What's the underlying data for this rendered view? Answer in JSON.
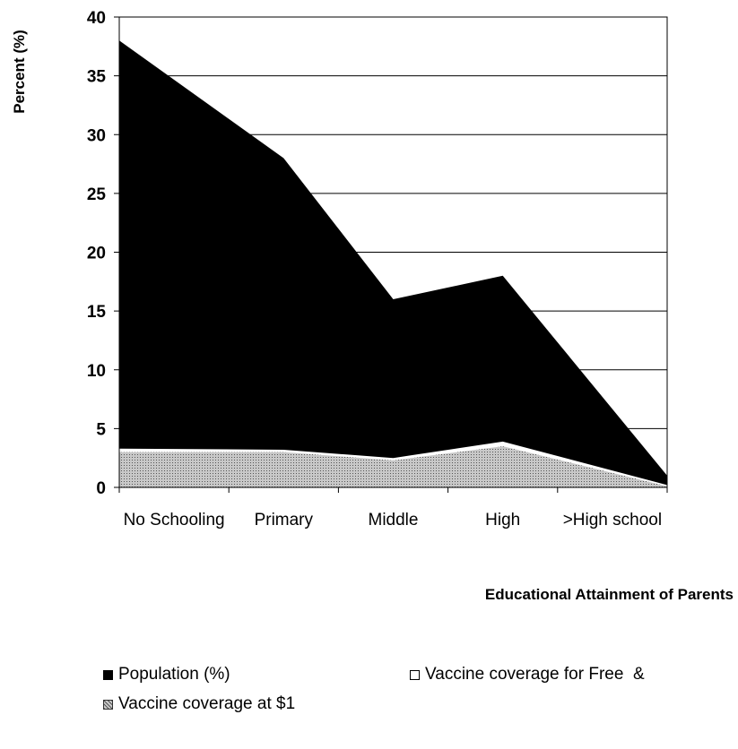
{
  "chart_data": {
    "type": "area",
    "stacked": false,
    "categories": [
      "No Schooling",
      "Primary",
      "Middle",
      "High",
      ">High school"
    ],
    "series": [
      {
        "name": "Population (%)",
        "values": [
          38,
          28,
          16,
          18,
          1
        ],
        "color": "#000000"
      },
      {
        "name": "Vaccine coverage for Free  &",
        "values": [
          3.3,
          3.2,
          2.5,
          3.9,
          0.2
        ],
        "color": "#ffffff"
      },
      {
        "name": "Vaccine coverage at $1",
        "values": [
          3.0,
          3.0,
          2.3,
          3.5,
          0.1
        ],
        "color": "#b8b8b8",
        "pattern": "dots"
      }
    ],
    "title": "",
    "xlabel": "Educational Attainment of Parents",
    "ylabel": "Percent (%)",
    "ylim": [
      0,
      40
    ],
    "yticks": [
      0,
      5,
      10,
      15,
      20,
      25,
      30,
      35,
      40
    ],
    "grid": "horizontal",
    "legend_position": "bottom"
  }
}
